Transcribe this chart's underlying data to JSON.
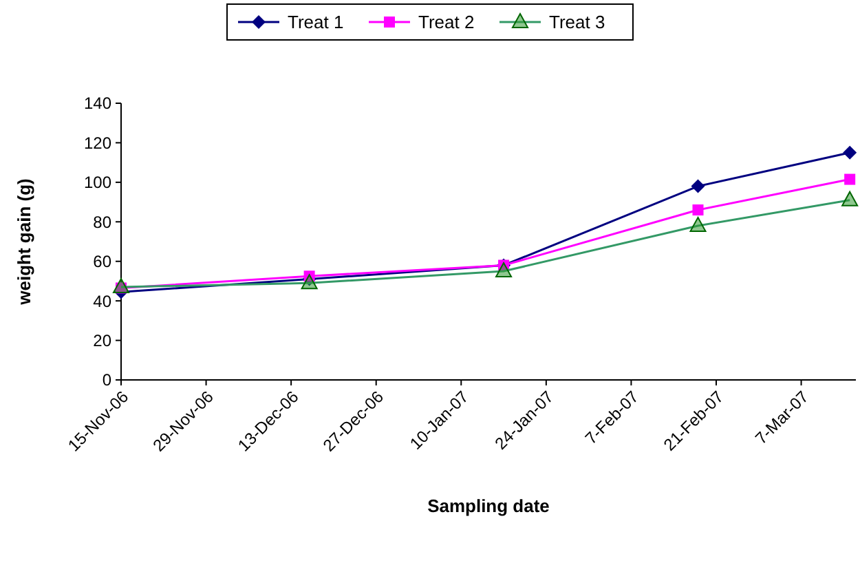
{
  "chart_data": {
    "type": "line",
    "xlabel": "Sampling date",
    "ylabel": "weight gain (g)",
    "x": [
      "2006-11-15",
      "2006-12-16",
      "2007-01-17",
      "2007-02-18",
      "2007-03-15"
    ],
    "series": [
      {
        "name": "Treat 1",
        "color": "#000080",
        "marker": "diamond",
        "values": [
          44.5,
          51,
          58,
          98,
          115
        ]
      },
      {
        "name": "Treat 2",
        "color": "#ff00ff",
        "marker": "square",
        "values": [
          46.5,
          52.5,
          58,
          86,
          101.5
        ]
      },
      {
        "name": "Treat 3",
        "color": "#339966",
        "marker": "triangle",
        "values": [
          47,
          49,
          55,
          78,
          91
        ]
      }
    ],
    "xlim": [
      "2006-11-15",
      "2007-03-16"
    ],
    "xticks": [
      {
        "value": "2006-11-15",
        "label": "15-Nov-06"
      },
      {
        "value": "2006-11-29",
        "label": "29-Nov-06"
      },
      {
        "value": "2006-12-13",
        "label": "13-Dec-06"
      },
      {
        "value": "2006-12-27",
        "label": "27-Dec-06"
      },
      {
        "value": "2007-01-10",
        "label": "10-Jan-07"
      },
      {
        "value": "2007-01-24",
        "label": "24-Jan-07"
      },
      {
        "value": "2007-02-07",
        "label": "7-Feb-07"
      },
      {
        "value": "2007-02-21",
        "label": "21-Feb-07"
      },
      {
        "value": "2007-03-07",
        "label": "7-Mar-07"
      }
    ],
    "ylim": [
      0,
      140
    ],
    "yticks": [
      0,
      20,
      40,
      60,
      80,
      100,
      120,
      140
    ],
    "grid": false,
    "legend": "top",
    "line_style": "solid"
  }
}
